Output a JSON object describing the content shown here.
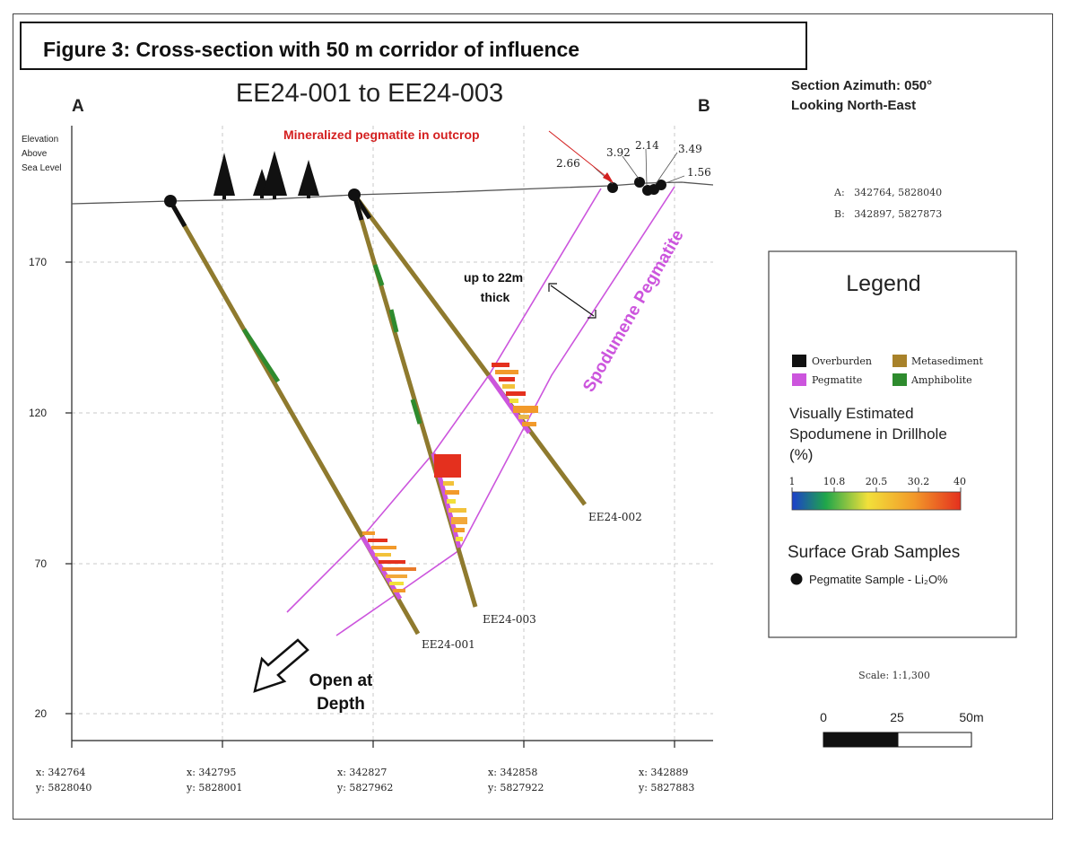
{
  "caption": "Figure 3: Cross-section with 50 m corridor of influence",
  "section": {
    "title": "EE24-001 to EE24-003",
    "label_a": "A",
    "label_b": "B",
    "azimuth_line1": "Section Azimuth: 050°",
    "azimuth_line2": "Looking North-East",
    "coord_a": "A:   342764, 5828040",
    "coord_b": "B:   342897, 5827873",
    "elevation_label_lines": [
      "Elevation",
      "Above",
      "Sea Level"
    ]
  },
  "axis": {
    "elevation_ticks": [
      "170",
      "120",
      "70",
      "20"
    ],
    "easting_ticks": [
      {
        "x": "x: 342764",
        "y": "y: 5828040"
      },
      {
        "x": "x: 342795",
        "y": "y: 5828001"
      },
      {
        "x": "x: 342827",
        "y": "y: 5827962"
      },
      {
        "x": "x: 342858",
        "y": "y: 5827922"
      },
      {
        "x": "x: 342889",
        "y": "y: 5827883"
      }
    ]
  },
  "annotations": {
    "outcrop": "Mineralized pegmatite in outcrop",
    "thickness_line1": "up to 22m",
    "thickness_line2": "thick",
    "unit_label": "Spodumene Pegmatite",
    "open_line1": "Open at",
    "open_line2": "Depth",
    "grab_values": [
      "2.66",
      "3.92",
      "2.14",
      "3.49",
      "1.56"
    ]
  },
  "drillholes": [
    "EE24-001",
    "EE24-002",
    "EE24-003"
  ],
  "legend": {
    "title": "Legend",
    "items": [
      {
        "label": "Overburden",
        "color": "#111111"
      },
      {
        "label": "Metasediment",
        "color": "#a8822a"
      },
      {
        "label": "Pegmatite",
        "color": "#cc55dd"
      },
      {
        "label": "Amphibolite",
        "color": "#2e8b2e"
      }
    ],
    "spodumene_title_lines": [
      "Visually Estimated",
      "Spodumene in Drillhole",
      "(%)"
    ],
    "colorbar_ticks": [
      "1",
      "10.8",
      "20.5",
      "30.2",
      "40"
    ],
    "grab_title": "Surface Grab Samples",
    "grab_item": "Pegmatite Sample - Li₂O%"
  },
  "scale": {
    "ratio": "Scale: 1:1,300",
    "ticks": [
      "0",
      "25",
      "50m"
    ]
  },
  "colors": {
    "pegmatite_outline": "#cc55dd",
    "metasediment": "#8f7a2e",
    "amphibolite": "#2e8b2e",
    "outcrop_label": "#d42020"
  }
}
